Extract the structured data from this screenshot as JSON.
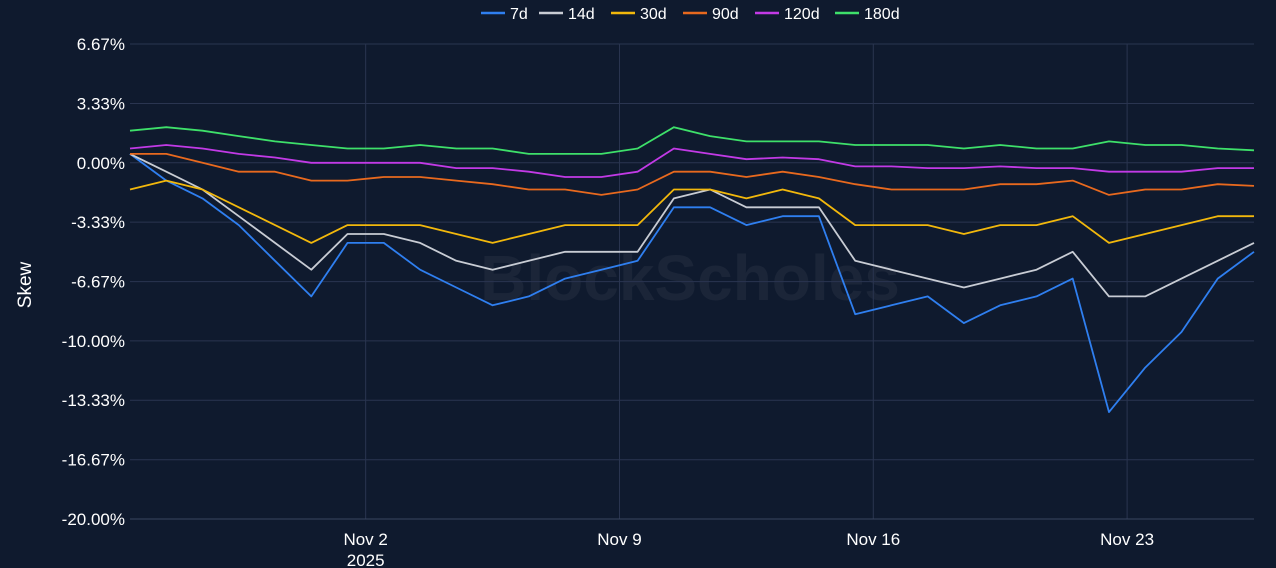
{
  "watermark": "BlockScholes",
  "chart_data": {
    "type": "line",
    "title": "",
    "ylabel": "Skew",
    "xlabel": "",
    "y_ticks": [
      "6.67%",
      "3.33%",
      "0.00%",
      "-3.33%",
      "-6.67%",
      "-10.00%",
      "-13.33%",
      "-16.67%",
      "-20.00%"
    ],
    "y_tick_values": [
      6.67,
      3.33,
      0,
      -3.33,
      -6.67,
      -10,
      -13.33,
      -16.67,
      -20
    ],
    "ylim": [
      -20,
      6.67
    ],
    "x_ticks": [
      {
        "label": "Nov 2",
        "sublabel": "2025",
        "date": "2025-11-02"
      },
      {
        "label": "Nov 9",
        "sublabel": "",
        "date": "2025-11-09"
      },
      {
        "label": "Nov 16",
        "sublabel": "",
        "date": "2025-11-16"
      },
      {
        "label": "Nov 23",
        "sublabel": "",
        "date": "2025-11-23"
      }
    ],
    "xlim": [
      "2025-10-26T12:00",
      "2025-11-26T12:00"
    ],
    "grid": true,
    "legend_position": "top-center",
    "x": [
      "2025-10-26T12:00",
      "2025-10-27T12:00",
      "2025-10-28T12:00",
      "2025-10-29T12:00",
      "2025-10-30T12:00",
      "2025-10-31T12:00",
      "2025-11-01T12:00",
      "2025-11-02T12:00",
      "2025-11-03T12:00",
      "2025-11-04T12:00",
      "2025-11-05T12:00",
      "2025-11-06T12:00",
      "2025-11-07T12:00",
      "2025-11-08T12:00",
      "2025-11-09T12:00",
      "2025-11-10T12:00",
      "2025-11-11T12:00",
      "2025-11-12T12:00",
      "2025-11-13T12:00",
      "2025-11-14T12:00",
      "2025-11-15T12:00",
      "2025-11-16T12:00",
      "2025-11-17T12:00",
      "2025-11-18T12:00",
      "2025-11-19T12:00",
      "2025-11-20T12:00",
      "2025-11-21T12:00",
      "2025-11-22T12:00",
      "2025-11-23T12:00",
      "2025-11-24T12:00",
      "2025-11-25T12:00",
      "2025-11-26T12:00"
    ],
    "series": [
      {
        "name": "7d",
        "color": "#2f7ff0",
        "values": [
          0.5,
          -1.0,
          -2.0,
          -3.5,
          -5.5,
          -7.5,
          -4.5,
          -4.5,
          -6.0,
          -7.0,
          -8.0,
          -7.5,
          -6.5,
          -6.0,
          -5.5,
          -2.5,
          -2.5,
          -3.5,
          -3.0,
          -3.0,
          -8.5,
          -8.0,
          -7.5,
          -9.0,
          -8.0,
          -7.5,
          -6.5,
          -14.0,
          -11.5,
          -9.5,
          -6.5,
          -5.0
        ]
      },
      {
        "name": "14d",
        "color": "#c8ccd4",
        "values": [
          0.5,
          -0.5,
          -1.5,
          -3.0,
          -4.5,
          -6.0,
          -4.0,
          -4.0,
          -4.5,
          -5.5,
          -6.0,
          -5.5,
          -5.0,
          -5.0,
          -5.0,
          -2.0,
          -1.5,
          -2.5,
          -2.5,
          -2.5,
          -5.5,
          -6.0,
          -6.5,
          -7.0,
          -6.5,
          -6.0,
          -5.0,
          -7.5,
          -7.5,
          -6.5,
          -5.5,
          -4.5
        ]
      },
      {
        "name": "30d",
        "color": "#f2b80c",
        "values": [
          -1.5,
          -1.0,
          -1.5,
          -2.5,
          -3.5,
          -4.5,
          -3.5,
          -3.5,
          -3.5,
          -4.0,
          -4.5,
          -4.0,
          -3.5,
          -3.5,
          -3.5,
          -1.5,
          -1.5,
          -2.0,
          -1.5,
          -2.0,
          -3.5,
          -3.5,
          -3.5,
          -4.0,
          -3.5,
          -3.5,
          -3.0,
          -4.5,
          -4.0,
          -3.5,
          -3.0,
          -3.0
        ]
      },
      {
        "name": "90d",
        "color": "#e8691e",
        "values": [
          0.5,
          0.5,
          0.0,
          -0.5,
          -0.5,
          -1.0,
          -1.0,
          -0.8,
          -0.8,
          -1.0,
          -1.2,
          -1.5,
          -1.5,
          -1.8,
          -1.5,
          -0.5,
          -0.5,
          -0.8,
          -0.5,
          -0.8,
          -1.2,
          -1.5,
          -1.5,
          -1.5,
          -1.2,
          -1.2,
          -1.0,
          -1.8,
          -1.5,
          -1.5,
          -1.2,
          -1.3
        ]
      },
      {
        "name": "120d",
        "color": "#c23ae6",
        "values": [
          0.8,
          1.0,
          0.8,
          0.5,
          0.3,
          0.0,
          0.0,
          0.0,
          0.0,
          -0.3,
          -0.3,
          -0.5,
          -0.8,
          -0.8,
          -0.5,
          0.8,
          0.5,
          0.2,
          0.3,
          0.2,
          -0.2,
          -0.2,
          -0.3,
          -0.3,
          -0.2,
          -0.3,
          -0.3,
          -0.5,
          -0.5,
          -0.5,
          -0.3,
          -0.3
        ]
      },
      {
        "name": "180d",
        "color": "#3ee06a",
        "values": [
          1.8,
          2.0,
          1.8,
          1.5,
          1.2,
          1.0,
          0.8,
          0.8,
          1.0,
          0.8,
          0.8,
          0.5,
          0.5,
          0.5,
          0.8,
          2.0,
          1.5,
          1.2,
          1.2,
          1.2,
          1.0,
          1.0,
          1.0,
          0.8,
          1.0,
          0.8,
          0.8,
          1.2,
          1.0,
          1.0,
          0.8,
          0.7
        ]
      }
    ]
  }
}
